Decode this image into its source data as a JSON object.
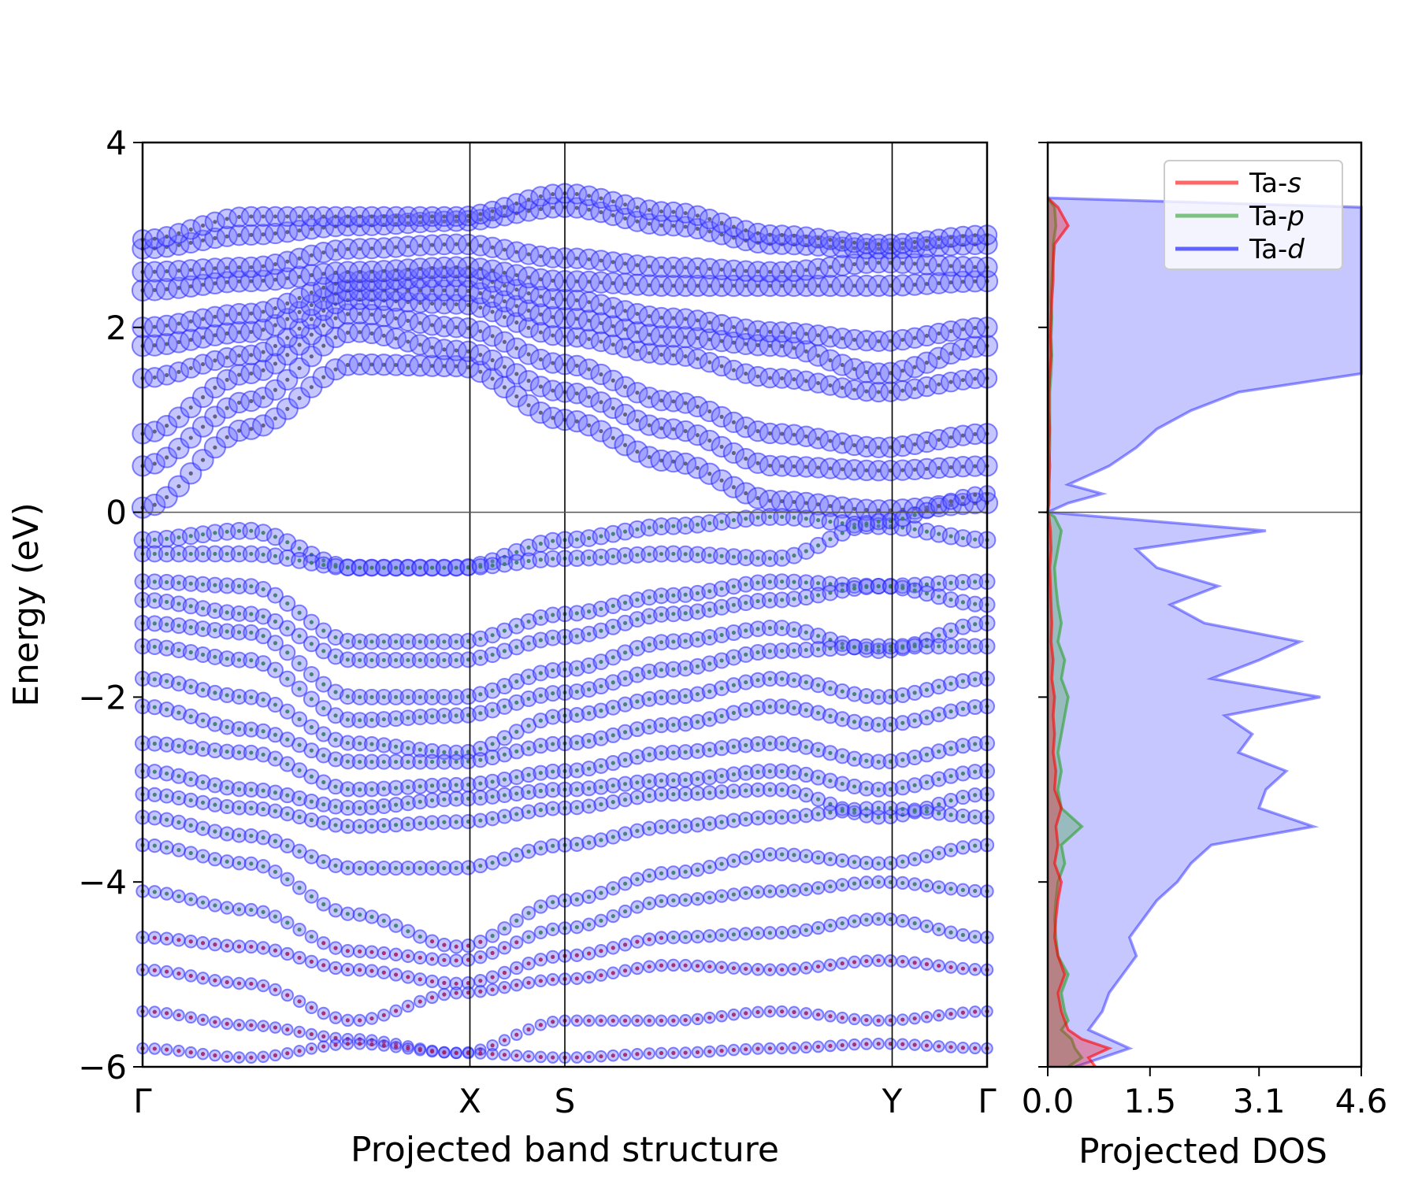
{
  "chart_data": [
    {
      "type": "scatter",
      "panel": "band-structure",
      "xlabel": "Projected band structure",
      "ylabel": "Energy (eV)",
      "ylim": [
        -6,
        4
      ],
      "yticks": [
        4,
        2,
        0,
        -2,
        -4,
        -6
      ],
      "ytick_labels": [
        "4",
        "2",
        "0",
        "−2",
        "−4",
        "−6"
      ],
      "kpath": [
        {
          "label": "Γ",
          "pos": 0.0
        },
        {
          "label": "X",
          "pos": 1.0
        },
        {
          "label": "S",
          "pos": 1.29
        },
        {
          "label": "Y",
          "pos": 2.29
        },
        {
          "label": "Γ",
          "pos": 2.58
        }
      ],
      "xlim": [
        0,
        2.58
      ],
      "fermi_level": 0,
      "grid": false,
      "series_colors": {
        "s": "#ff0000",
        "p": "#2ca02c",
        "d": "#0000ff"
      },
      "bands": [
        {
          "kind": "conduction",
          "e": [
            0.05,
            0.9,
            1.6,
            1.58,
            1.0,
            0.55,
            0.12,
            0.02,
            0.1
          ],
          "w": 0.9
        },
        {
          "kind": "conduction",
          "e": [
            0.5,
            1.2,
            1.95,
            1.75,
            1.3,
            0.9,
            0.5,
            0.45,
            0.5
          ],
          "w": 0.85
        },
        {
          "kind": "conduction",
          "e": [
            0.85,
            1.5,
            2.15,
            2.0,
            1.6,
            1.2,
            0.85,
            0.7,
            0.85
          ],
          "w": 0.85
        },
        {
          "kind": "conduction",
          "e": [
            1.45,
            1.7,
            2.3,
            2.25,
            1.9,
            1.7,
            1.45,
            1.3,
            1.45
          ],
          "w": 0.8
        },
        {
          "kind": "conduction",
          "e": [
            1.8,
            1.95,
            2.4,
            2.4,
            2.1,
            1.9,
            1.8,
            1.5,
            1.8
          ],
          "w": 0.9
        },
        {
          "kind": "conduction",
          "e": [
            2.0,
            2.15,
            2.5,
            2.55,
            2.3,
            2.1,
            1.95,
            1.85,
            2.0
          ],
          "w": 0.85
        },
        {
          "kind": "conduction",
          "e": [
            2.4,
            2.5,
            2.6,
            2.65,
            2.5,
            2.45,
            2.45,
            2.45,
            2.5
          ],
          "w": 0.9
        },
        {
          "kind": "conduction",
          "e": [
            2.6,
            2.65,
            2.85,
            2.9,
            2.75,
            2.65,
            2.6,
            2.7,
            2.65
          ],
          "w": 0.85
        },
        {
          "kind": "conduction",
          "e": [
            2.85,
            3.0,
            3.1,
            3.15,
            3.3,
            3.1,
            2.9,
            2.85,
            2.9
          ],
          "w": 0.85
        },
        {
          "kind": "conduction",
          "e": [
            2.95,
            3.2,
            3.2,
            3.2,
            3.45,
            3.25,
            3.0,
            2.9,
            3.0
          ],
          "w": 0.8
        },
        {
          "kind": "valence",
          "e": [
            -0.3,
            -0.2,
            -0.6,
            -0.6,
            -0.3,
            -0.15,
            -0.05,
            -0.15,
            -0.3
          ],
          "w": 0.6
        },
        {
          "kind": "valence",
          "e": [
            -0.45,
            -0.45,
            -0.6,
            -0.6,
            -0.5,
            -0.45,
            -0.5,
            -0.1,
            0.2
          ],
          "w": 0.55
        },
        {
          "kind": "valence",
          "e": [
            -0.75,
            -0.8,
            -1.4,
            -1.4,
            -1.1,
            -0.9,
            -0.75,
            -0.8,
            -0.75
          ],
          "w": 0.5
        },
        {
          "kind": "valence",
          "e": [
            -0.95,
            -1.1,
            -1.6,
            -1.6,
            -1.35,
            -1.1,
            -0.95,
            -0.8,
            -1.0
          ],
          "w": 0.5
        },
        {
          "kind": "valence",
          "e": [
            -1.2,
            -1.3,
            -2.0,
            -2.0,
            -1.7,
            -1.4,
            -1.25,
            -1.5,
            -1.2
          ],
          "w": 0.5
        },
        {
          "kind": "valence",
          "e": [
            -1.45,
            -1.6,
            -2.25,
            -2.2,
            -1.95,
            -1.7,
            -1.5,
            -1.45,
            -1.45
          ],
          "w": 0.5
        },
        {
          "kind": "valence",
          "e": [
            -1.8,
            -2.0,
            -2.5,
            -2.6,
            -2.2,
            -2.0,
            -1.8,
            -2.0,
            -1.8
          ],
          "w": 0.45
        },
        {
          "kind": "valence",
          "e": [
            -2.1,
            -2.35,
            -2.7,
            -2.7,
            -2.5,
            -2.3,
            -2.1,
            -2.3,
            -2.1
          ],
          "w": 0.45
        },
        {
          "kind": "valence",
          "e": [
            -2.5,
            -2.6,
            -3.0,
            -2.95,
            -2.8,
            -2.6,
            -2.5,
            -2.7,
            -2.5
          ],
          "w": 0.45
        },
        {
          "kind": "valence",
          "e": [
            -2.8,
            -3.0,
            -3.2,
            -3.1,
            -3.0,
            -2.9,
            -2.8,
            -3.0,
            -2.8
          ],
          "w": 0.45
        },
        {
          "kind": "valence",
          "e": [
            -3.05,
            -3.2,
            -3.4,
            -3.35,
            -3.2,
            -3.05,
            -3.0,
            -3.3,
            -3.05
          ],
          "w": 0.4
        },
        {
          "kind": "valence",
          "e": [
            -3.3,
            -3.5,
            -3.85,
            -3.85,
            -3.6,
            -3.4,
            -3.3,
            -3.2,
            -3.3
          ],
          "w": 0.4
        },
        {
          "kind": "valence",
          "e": [
            -3.6,
            -3.8,
            -4.35,
            -4.7,
            -4.2,
            -3.9,
            -3.7,
            -3.8,
            -3.6
          ],
          "w": 0.35
        },
        {
          "kind": "valence",
          "e": [
            -4.1,
            -4.3,
            -4.75,
            -4.85,
            -4.5,
            -4.2,
            -4.1,
            -4.0,
            -4.1
          ],
          "w": 0.3
        },
        {
          "kind": "valence",
          "e": [
            -4.6,
            -4.7,
            -4.95,
            -5.1,
            -4.8,
            -4.6,
            -4.55,
            -4.4,
            -4.6
          ],
          "w": 0.3
        },
        {
          "kind": "valence",
          "e": [
            -4.95,
            -5.1,
            -5.5,
            -5.2,
            -5.05,
            -4.9,
            -4.95,
            -4.85,
            -4.95
          ],
          "w": 0.25
        },
        {
          "kind": "valence",
          "e": [
            -5.4,
            -5.55,
            -5.7,
            -5.85,
            -5.5,
            -5.5,
            -5.4,
            -5.5,
            -5.4
          ],
          "w": 0.2
        },
        {
          "kind": "valence",
          "e": [
            -5.8,
            -5.9,
            -5.75,
            -5.85,
            -5.9,
            -5.85,
            -5.8,
            -5.75,
            -5.8
          ],
          "w": 0.2
        }
      ]
    },
    {
      "type": "line",
      "panel": "projected-dos",
      "xlabel": "Projected DOS",
      "xlim": [
        0,
        4.6
      ],
      "xticks": [
        0.0,
        1.5,
        3.1,
        4.6
      ],
      "xtick_labels": [
        "0.0",
        "1.5",
        "3.1",
        "4.6"
      ],
      "ylim": [
        -6,
        4
      ],
      "yticks": [
        4,
        2,
        0,
        -2,
        -4,
        -6
      ],
      "fermi_level": 0,
      "legend_position": "top-right",
      "legend": [
        {
          "prefix": "Ta-",
          "orbital": "s",
          "color": "#ff0000"
        },
        {
          "prefix": "Ta-",
          "orbital": "p",
          "color": "#2ca02c"
        },
        {
          "prefix": "Ta-",
          "orbital": "d",
          "color": "#0000ff"
        }
      ],
      "energy": [
        -6.0,
        -5.9,
        -5.8,
        -5.7,
        -5.6,
        -5.5,
        -5.4,
        -5.2,
        -5.0,
        -4.8,
        -4.6,
        -4.4,
        -4.2,
        -4.0,
        -3.8,
        -3.6,
        -3.4,
        -3.2,
        -3.0,
        -2.8,
        -2.6,
        -2.4,
        -2.2,
        -2.0,
        -1.8,
        -1.6,
        -1.4,
        -1.2,
        -1.0,
        -0.8,
        -0.6,
        -0.4,
        -0.2,
        -0.05,
        0.0,
        0.1,
        0.2,
        0.3,
        0.5,
        0.7,
        0.9,
        1.1,
        1.3,
        1.5,
        1.7,
        1.9,
        2.1,
        2.3,
        2.5,
        2.7,
        2.9,
        3.1,
        3.3,
        3.4
      ],
      "series": [
        {
          "name": "Ta-s",
          "color": "#ff0000",
          "values": [
            0.7,
            0.6,
            0.9,
            0.5,
            0.3,
            0.25,
            0.2,
            0.15,
            0.25,
            0.15,
            0.1,
            0.12,
            0.15,
            0.2,
            0.1,
            0.15,
            0.12,
            0.2,
            0.1,
            0.12,
            0.08,
            0.1,
            0.08,
            0.1,
            0.06,
            0.08,
            0.05,
            0.06,
            0.05,
            0.04,
            0.03,
            0.05,
            0.04,
            0.02,
            0.0,
            0.02,
            0.02,
            0.02,
            0.03,
            0.02,
            0.03,
            0.02,
            0.02,
            0.03,
            0.05,
            0.04,
            0.05,
            0.06,
            0.08,
            0.08,
            0.1,
            0.3,
            0.15,
            0.0
          ]
        },
        {
          "name": "Ta-p",
          "color": "#2ca02c",
          "values": [
            0.3,
            0.5,
            0.4,
            0.35,
            0.2,
            0.3,
            0.25,
            0.2,
            0.3,
            0.15,
            0.12,
            0.1,
            0.12,
            0.15,
            0.25,
            0.2,
            0.5,
            0.2,
            0.15,
            0.2,
            0.15,
            0.2,
            0.25,
            0.3,
            0.2,
            0.25,
            0.15,
            0.2,
            0.15,
            0.12,
            0.1,
            0.15,
            0.2,
            0.1,
            0.0,
            0.01,
            0.02,
            0.02,
            0.02,
            0.03,
            0.03,
            0.03,
            0.03,
            0.05,
            0.06,
            0.05,
            0.06,
            0.05,
            0.06,
            0.08,
            0.08,
            0.12,
            0.1,
            0.0
          ]
        },
        {
          "name": "Ta-d",
          "color": "#0000ff",
          "values": [
            0.4,
            0.8,
            1.2,
            0.9,
            0.6,
            0.7,
            0.8,
            0.9,
            1.1,
            1.3,
            1.2,
            1.4,
            1.6,
            1.9,
            2.1,
            2.4,
            3.9,
            3.1,
            3.2,
            3.5,
            2.8,
            3.0,
            2.6,
            4.0,
            2.4,
            3.1,
            3.7,
            2.3,
            1.8,
            2.5,
            1.6,
            1.3,
            3.2,
            0.8,
            0.0,
            0.3,
            0.8,
            0.3,
            0.9,
            1.3,
            1.6,
            2.1,
            2.8,
            4.6,
            4.6,
            4.6,
            4.6,
            4.6,
            4.6,
            4.6,
            4.6,
            4.6,
            4.6,
            0.0
          ]
        }
      ]
    }
  ]
}
